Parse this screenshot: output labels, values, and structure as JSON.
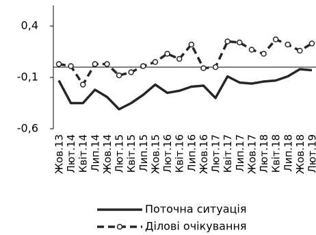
{
  "chart_data": {
    "type": "line",
    "categories": [
      "Жов.13",
      "Лют.14",
      "Квіт.14",
      "Лип.14",
      "Жов.14",
      "Лют.15",
      "Квіт.15",
      "Лип.15",
      "Жов.15",
      "Лют.16",
      "Квіт.16",
      "Лип.16",
      "Жов.16",
      "Лют.17",
      "Квіт.17",
      "Лип.17",
      "Жов.17",
      "Лют.18",
      "Квіт.18",
      "Лип.18",
      "Жов.18",
      "Лют.19"
    ],
    "series": [
      {
        "name": "Поточна ситуація",
        "color": "#262626",
        "dashed": false,
        "markers": false,
        "values": [
          -0.13,
          -0.35,
          -0.35,
          -0.22,
          -0.29,
          -0.41,
          -0.35,
          -0.27,
          -0.17,
          -0.25,
          -0.23,
          -0.19,
          -0.18,
          -0.3,
          -0.09,
          -0.15,
          -0.16,
          -0.14,
          -0.13,
          -0.09,
          -0.02,
          -0.03
        ]
      },
      {
        "name": "Ділові очікування",
        "color": "#262626",
        "dashed": true,
        "markers": true,
        "values": [
          0.03,
          0.01,
          -0.17,
          0.03,
          0.03,
          -0.08,
          -0.05,
          0.01,
          0.05,
          0.13,
          0.08,
          0.22,
          -0.01,
          0.0,
          0.25,
          0.24,
          0.17,
          0.13,
          0.27,
          0.22,
          0.16,
          0.23
        ]
      }
    ],
    "ylim": [
      -0.6,
      0.6
    ],
    "yticks": [
      {
        "value": 0.4,
        "label": "0,4"
      },
      {
        "value": -0.1,
        "label": "-0,1"
      },
      {
        "value": -0.6,
        "label": "-0,6"
      }
    ],
    "grid": false
  }
}
